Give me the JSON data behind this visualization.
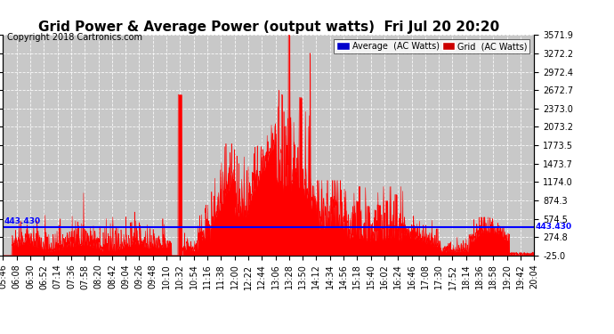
{
  "title": "Grid Power & Average Power (output watts)  Fri Jul 20 20:20",
  "copyright": "Copyright 2018 Cartronics.com",
  "ymin": -25.0,
  "ymax": 3571.9,
  "yticks": [
    3571.9,
    3272.2,
    2972.4,
    2672.7,
    2373.0,
    2073.2,
    1773.5,
    1473.7,
    1174.0,
    874.3,
    574.5,
    274.8,
    -25.0
  ],
  "average_line": 443.43,
  "average_label": "443.430",
  "fill_color": "#ff0000",
  "avg_line_color": "#0000ff",
  "bg_color": "#ffffff",
  "plot_bg_color": "#c8c8c8",
  "grid_color": "#ffffff",
  "title_fontsize": 11,
  "tick_fontsize": 7,
  "copyright_fontsize": 7,
  "xtick_labels": [
    "05:46",
    "06:08",
    "06:30",
    "06:52",
    "07:14",
    "07:36",
    "07:58",
    "08:20",
    "08:42",
    "09:04",
    "09:26",
    "09:48",
    "10:10",
    "10:32",
    "10:54",
    "11:16",
    "11:38",
    "12:00",
    "12:22",
    "12:44",
    "13:06",
    "13:28",
    "13:50",
    "14:12",
    "14:34",
    "14:56",
    "15:18",
    "15:40",
    "16:02",
    "16:24",
    "16:46",
    "17:08",
    "17:30",
    "17:52",
    "18:14",
    "18:36",
    "18:58",
    "19:20",
    "19:42",
    "20:04"
  ]
}
